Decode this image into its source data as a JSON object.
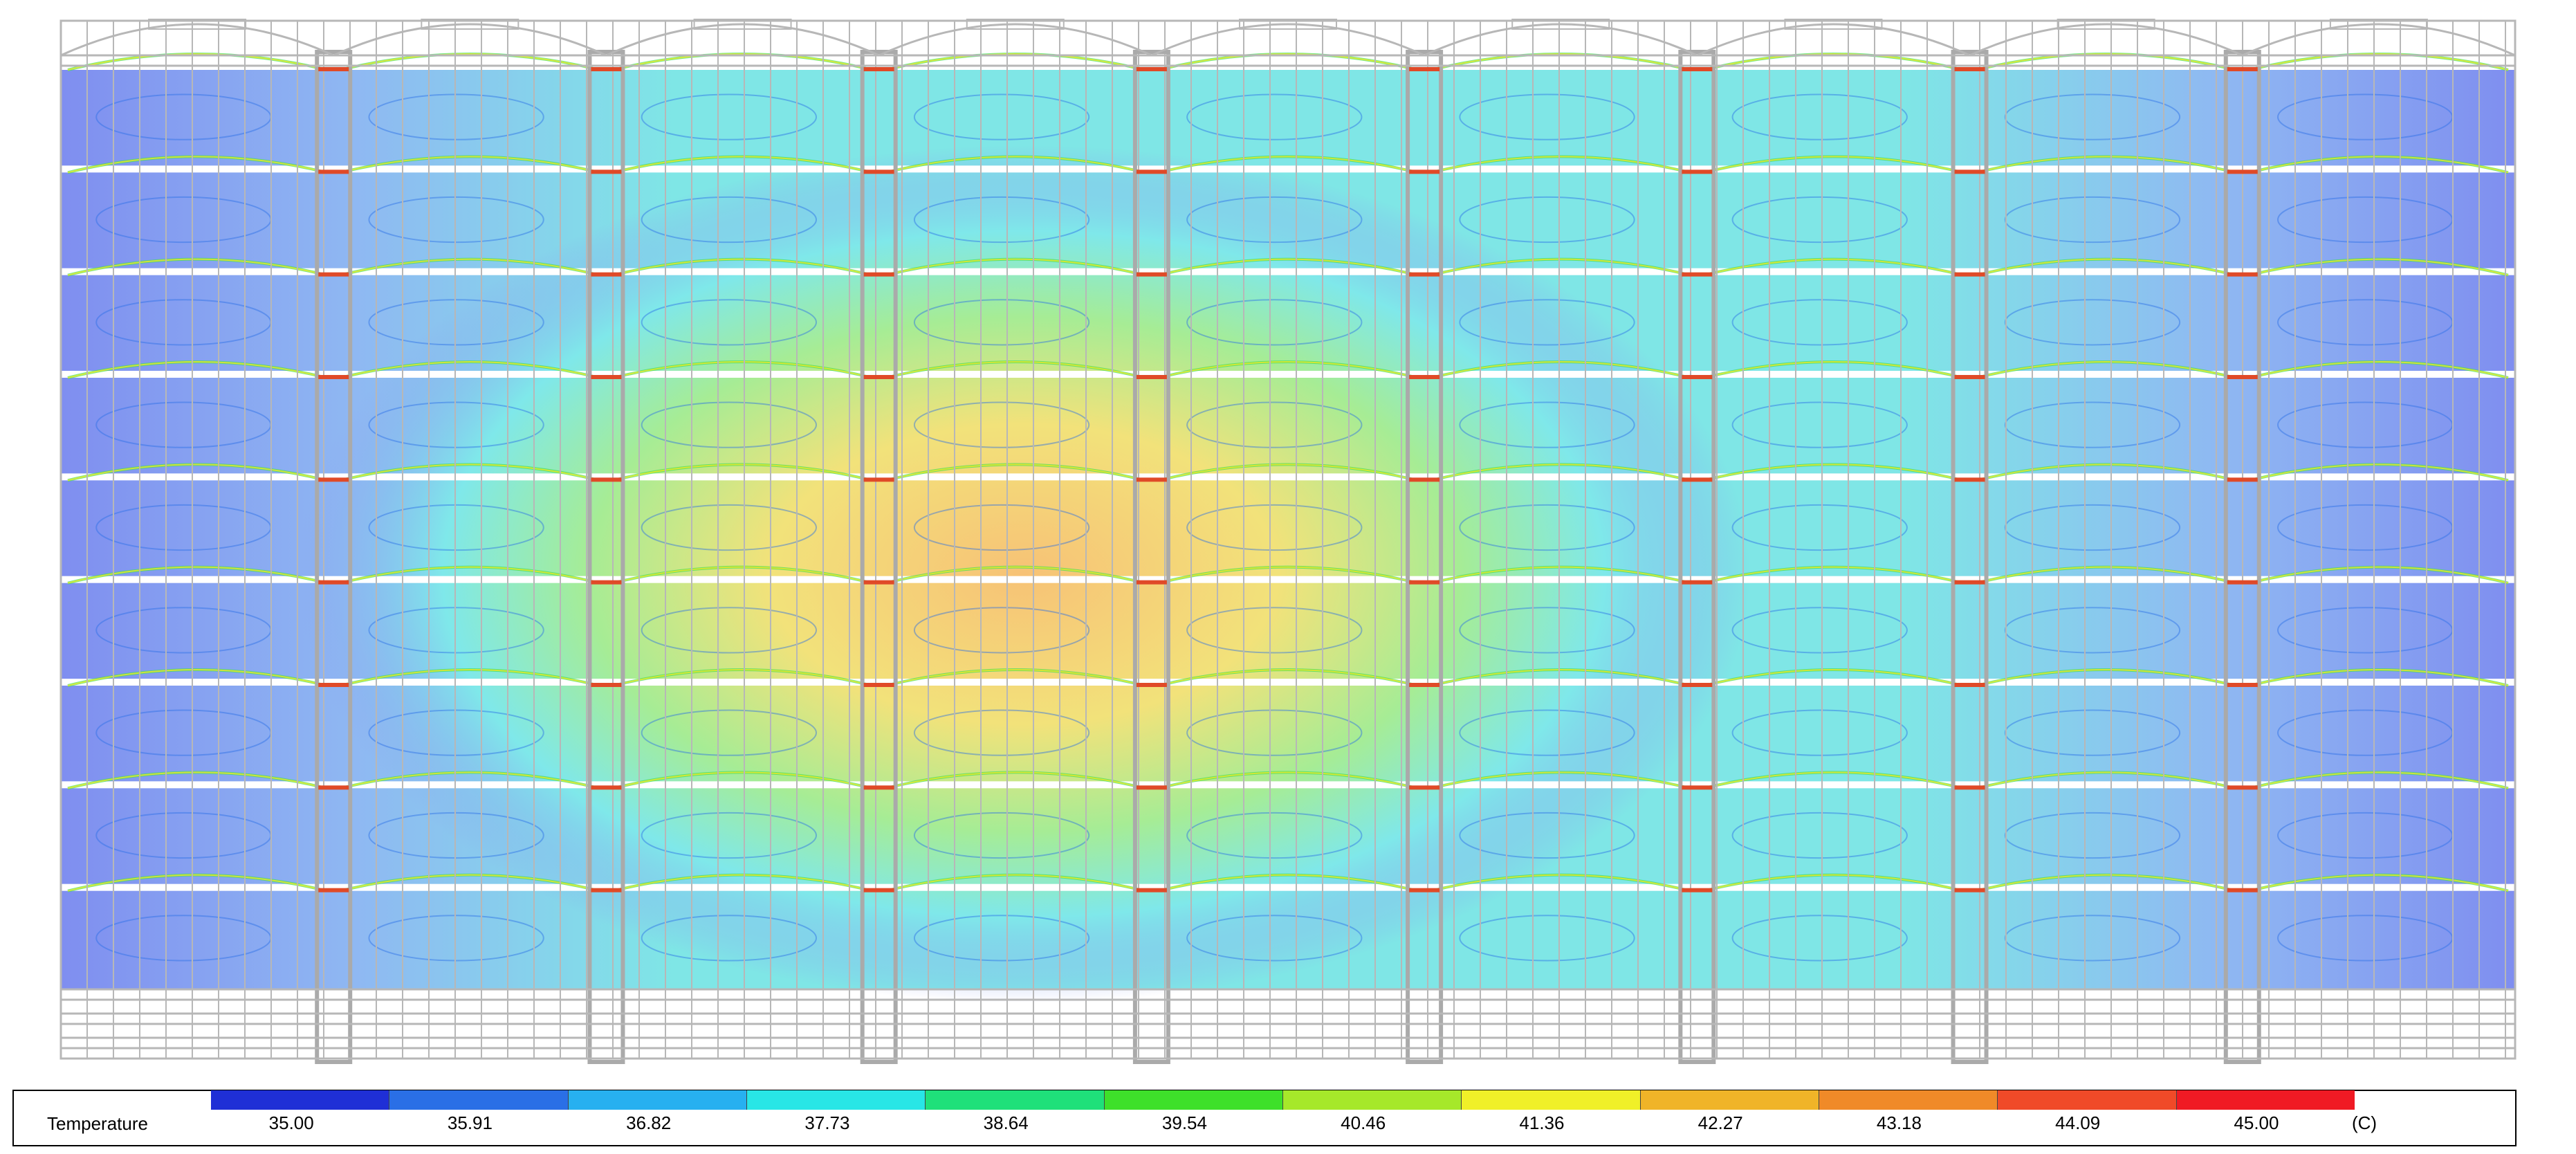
{
  "legend": {
    "title": "Temperature",
    "unit": "(C)",
    "ticks": [
      "35.00",
      "35.91",
      "36.82",
      "37.73",
      "38.64",
      "39.54",
      "40.46",
      "41.36",
      "42.27",
      "43.18",
      "44.09",
      "45.00"
    ],
    "colors": [
      "#1f2fd6",
      "#2a6fe6",
      "#27b0f0",
      "#28e6e6",
      "#1fe07a",
      "#3ee02a",
      "#a6e82a",
      "#f0f028",
      "#f0b428",
      "#f08a28",
      "#f04a28",
      "#f01a24"
    ]
  },
  "plot": {
    "rows": 9,
    "columns": 9,
    "colors": {
      "cool": "#7f8ef0",
      "mid": "#7fe8ea",
      "warm": "#9ee8a0",
      "hot": "#f7d27a",
      "rack": "#b7b7b7",
      "separator": "#ffffff"
    }
  }
}
